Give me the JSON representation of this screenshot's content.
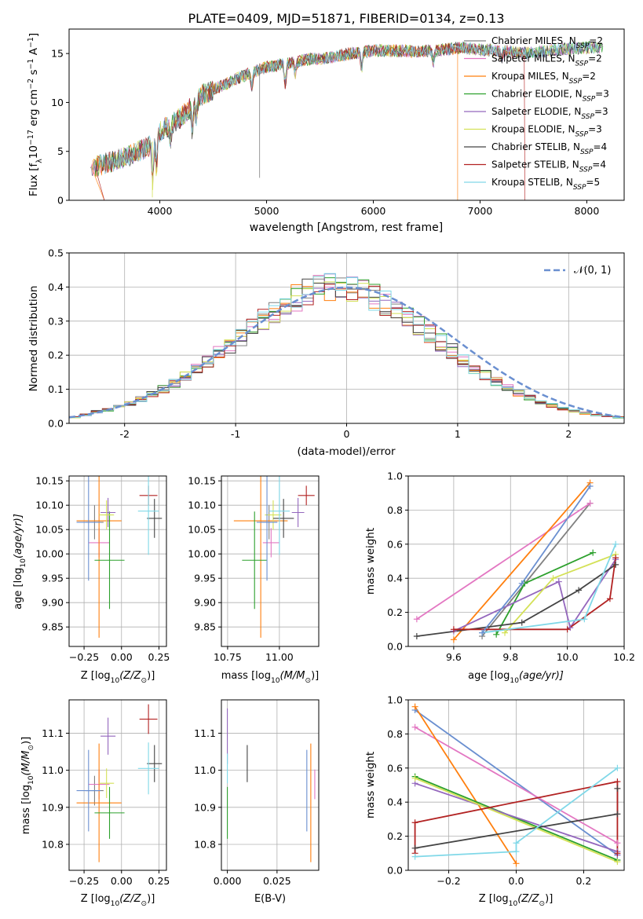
{
  "figure_title": "PLATE=0409, MJD=51871, FIBERID=0134, z=0.13",
  "colors": {
    "Chabrier MILES": "#808080",
    "Salpeter MILES": "#e377c2",
    "Kroupa MILES": "#ff7f0e",
    "Chabrier ELODIE": "#2ca02c",
    "Salpeter ELODIE": "#9467bd",
    "Kroupa ELODIE": "#d4e157",
    "Chabrier STELIB": "#444444",
    "Salpeter STELIB": "#b22222",
    "Kroupa STELIB": "#80d8e8",
    "gaussian": "#6a8fd0"
  },
  "chart_data": [
    {
      "id": "spectrum",
      "type": "line",
      "title": "PLATE=0409, MJD=51871, FIBERID=0134, z=0.13",
      "xlabel": "wavelength [Angstrom, rest frame]",
      "ylabel_main": "Flux [f",
      "ylabel_sub": "λ",
      "ylabel_rest": "10",
      "ylabel_exp1": "−17",
      "ylabel_unit": " erg cm",
      "ylabel_exp2": "−2",
      "ylabel_s": " s",
      "ylabel_exp3": "−1",
      "ylabel_A": " A",
      "ylabel_exp4": "−1",
      "ylabel_end": "]",
      "xlim": [
        3150,
        8350
      ],
      "ylim": [
        0,
        17.5
      ],
      "xticks": [
        4000,
        5000,
        6000,
        7000,
        8000
      ],
      "yticks": [
        0,
        5,
        10,
        15
      ],
      "grid": false,
      "legend_position": "top-right",
      "continuum_x": [
        3350,
        3500,
        3700,
        3900,
        4000,
        4200,
        4400,
        4600,
        4800,
        5000,
        5200,
        5400,
        5600,
        5800,
        6000,
        6200,
        6400,
        6600,
        6800,
        7000,
        7200,
        7400,
        7600,
        7800,
        8000,
        8150
      ],
      "continuum_y": [
        3.3,
        3.8,
        4.5,
        5.5,
        7.0,
        8.5,
        10.8,
        11.8,
        12.8,
        13.6,
        14.0,
        14.4,
        14.6,
        15.0,
        15.3,
        15.3,
        15.2,
        15.3,
        15.6,
        15.4,
        15.3,
        15.0,
        15.2,
        15.5,
        15.6,
        15.7
      ],
      "series": [
        {
          "name": "Chabrier MILES",
          "nssp": "2"
        },
        {
          "name": "Salpeter MILES",
          "nssp": "2"
        },
        {
          "name": "Kroupa MILES",
          "nssp": "2"
        },
        {
          "name": "Chabrier ELODIE",
          "nssp": "3"
        },
        {
          "name": "Salpeter ELODIE",
          "nssp": "3"
        },
        {
          "name": "Kroupa ELODIE",
          "nssp": "3"
        },
        {
          "name": "Chabrier STELIB",
          "nssp": "4"
        },
        {
          "name": "Salpeter STELIB",
          "nssp": "4"
        },
        {
          "name": "Kroupa STELIB",
          "nssp": "5"
        }
      ],
      "legend_ssp_prefix": "N",
      "legend_ssp_sub": "SSP"
    },
    {
      "id": "residuals",
      "type": "bar",
      "xlabel": "(data-model)/error",
      "ylabel": "Normed distribution",
      "xlim": [
        -2.5,
        2.5
      ],
      "ylim": [
        0,
        0.5
      ],
      "xticks": [
        -2,
        -1,
        0,
        1,
        2
      ],
      "yticks": [
        0.0,
        0.1,
        0.2,
        0.3,
        0.4,
        0.5
      ],
      "grid": true,
      "legend_label": "𝒩(0, 1)",
      "legend_position": "top-right",
      "bin_edges_start": -2.5,
      "bin_width": 0.1,
      "histogram_values": [
        0.018,
        0.025,
        0.034,
        0.04,
        0.048,
        0.058,
        0.071,
        0.085,
        0.1,
        0.117,
        0.137,
        0.158,
        0.18,
        0.205,
        0.23,
        0.255,
        0.281,
        0.305,
        0.328,
        0.35,
        0.368,
        0.383,
        0.394,
        0.4,
        0.4,
        0.396,
        0.386,
        0.372,
        0.354,
        0.333,
        0.31,
        0.286,
        0.262,
        0.237,
        0.212,
        0.187,
        0.164,
        0.143,
        0.124,
        0.106,
        0.09,
        0.076,
        0.064,
        0.053,
        0.044,
        0.036,
        0.03,
        0.025,
        0.021,
        0.018
      ]
    },
    {
      "id": "age_vs_Z",
      "type": "scatter",
      "xlabel": "Z [log",
      "xlabel_sub": "10",
      "xlabel_rest": "(Z/Z",
      "xlabel_sun": "⊙",
      "xlabel_end": ")]",
      "ylabel": "age  [log",
      "ylabel_sub": "10",
      "ylabel_rest": "(age/yr)]",
      "xlim": [
        -0.35,
        0.3
      ],
      "ylim": [
        9.81,
        10.16
      ],
      "xticks": [
        -0.25,
        0.0,
        0.25
      ],
      "xticklabels": [
        "−0.25",
        "0.00",
        "0.25"
      ],
      "yticks": [
        9.85,
        9.9,
        9.95,
        10.0,
        10.05,
        10.1,
        10.15
      ],
      "grid": true,
      "points": [
        {
          "series": "Chabrier MILES",
          "x": -0.18,
          "xerr": 0.06,
          "y": 10.065,
          "yerr": 0.035
        },
        {
          "series": "Salpeter MILES",
          "x": -0.15,
          "xerr": 0.07,
          "y": 10.023,
          "yerr": 0.03
        },
        {
          "series": "Kroupa MILES",
          "x": -0.15,
          "xerr": 0.15,
          "y": 10.068,
          "yerr": 0.24
        },
        {
          "series": "Chabrier ELODIE",
          "x": -0.08,
          "xerr": 0.1,
          "y": 9.987,
          "yerr": 0.1
        },
        {
          "series": "Salpeter ELODIE",
          "x": -0.09,
          "xerr": 0.05,
          "y": 10.085,
          "yerr": 0.03
        },
        {
          "series": "Kroupa ELODIE",
          "x": -0.1,
          "xerr": 0.05,
          "y": 10.08,
          "yerr": 0.03
        },
        {
          "series": "Chabrier STELIB",
          "x": 0.22,
          "xerr": 0.05,
          "y": 10.073,
          "yerr": 0.04
        },
        {
          "series": "Salpeter STELIB",
          "x": 0.18,
          "xerr": 0.06,
          "y": 10.12,
          "yerr": 0.02
        },
        {
          "series": "Kroupa STELIB",
          "x": 0.18,
          "xerr": 0.07,
          "y": 10.088,
          "yerr": 0.09
        },
        {
          "series": "gaussian",
          "x": -0.22,
          "xerr": 0.08,
          "y": 10.065,
          "yerr": 0.12
        }
      ]
    },
    {
      "id": "age_vs_mass",
      "type": "scatter",
      "xlabel": "mass [log",
      "xlabel_sub": "10",
      "xlabel_rest": "(M/M",
      "xlabel_sun": "⊙",
      "xlabel_end": ")]",
      "xlim": [
        10.72,
        11.19
      ],
      "ylim": [
        9.81,
        10.16
      ],
      "xticks": [
        10.75,
        11.0
      ],
      "xticklabels": [
        "10.75",
        "11.00"
      ],
      "yticks": [
        9.85,
        9.9,
        9.95,
        10.0,
        10.05,
        10.1,
        10.15
      ],
      "grid": true,
      "points": [
        {
          "series": "Chabrier MILES",
          "x": 10.95,
          "xerr": 0.04,
          "y": 10.065,
          "yerr": 0.035
        },
        {
          "series": "Salpeter MILES",
          "x": 10.96,
          "xerr": 0.04,
          "y": 10.023,
          "yerr": 0.03
        },
        {
          "series": "Kroupa MILES",
          "x": 10.91,
          "xerr": 0.13,
          "y": 10.068,
          "yerr": 0.24
        },
        {
          "series": "Chabrier ELODIE",
          "x": 10.88,
          "xerr": 0.06,
          "y": 9.987,
          "yerr": 0.1
        },
        {
          "series": "Salpeter ELODIE",
          "x": 11.09,
          "xerr": 0.03,
          "y": 10.085,
          "yerr": 0.03
        },
        {
          "series": "Kroupa ELODIE",
          "x": 10.97,
          "xerr": 0.04,
          "y": 10.08,
          "yerr": 0.03
        },
        {
          "series": "Chabrier STELIB",
          "x": 11.02,
          "xerr": 0.05,
          "y": 10.073,
          "yerr": 0.04
        },
        {
          "series": "Salpeter STELIB",
          "x": 11.13,
          "xerr": 0.04,
          "y": 10.12,
          "yerr": 0.02
        },
        {
          "series": "Kroupa STELIB",
          "x": 11.0,
          "xerr": 0.05,
          "y": 10.088,
          "yerr": 0.09
        },
        {
          "series": "gaussian",
          "x": 10.94,
          "xerr": 0.05,
          "y": 10.065,
          "yerr": 0.12
        }
      ]
    },
    {
      "id": "massweight_vs_age",
      "type": "line",
      "xlabel": "age  [log",
      "xlabel_sub": "10",
      "xlabel_rest": "(age/yr)]",
      "ylabel": "mass weight",
      "xlim": [
        9.44,
        10.2
      ],
      "ylim": [
        0,
        1
      ],
      "xticks": [
        9.6,
        9.8,
        10.0,
        10.2
      ],
      "xticklabels": [
        "9.6",
        "9.8",
        "10.0",
        "10.2"
      ],
      "yticks": [
        0.0,
        0.2,
        0.4,
        0.6,
        0.8,
        1.0
      ],
      "grid": true,
      "series": [
        {
          "name": "Chabrier MILES",
          "x": [
            9.7,
            10.08
          ],
          "y": [
            0.06,
            0.84
          ]
        },
        {
          "name": "Salpeter MILES",
          "x": [
            9.47,
            10.08
          ],
          "y": [
            0.16,
            0.84
          ]
        },
        {
          "name": "Kroupa MILES",
          "x": [
            9.6,
            10.08
          ],
          "y": [
            0.04,
            0.96
          ]
        },
        {
          "name": "Chabrier ELODIE",
          "x": [
            9.75,
            9.85,
            10.09
          ],
          "y": [
            0.07,
            0.37,
            0.55
          ]
        },
        {
          "name": "Salpeter ELODIE",
          "x": [
            9.6,
            9.97,
            10.01,
            10.17
          ],
          "y": [
            0.09,
            0.38,
            0.11,
            0.51
          ]
        },
        {
          "name": "Kroupa ELODIE",
          "x": [
            9.78,
            9.95,
            10.17
          ],
          "y": [
            0.08,
            0.4,
            0.54
          ]
        },
        {
          "name": "Chabrier STELIB",
          "x": [
            9.47,
            9.84,
            10.04,
            10.17
          ],
          "y": [
            0.06,
            0.14,
            0.33,
            0.48
          ]
        },
        {
          "name": "Salpeter STELIB",
          "x": [
            9.6,
            10.0,
            10.15,
            10.17
          ],
          "y": [
            0.1,
            0.1,
            0.28,
            0.52
          ]
        },
        {
          "name": "Kroupa STELIB",
          "x": [
            9.7,
            10.06,
            10.17
          ],
          "y": [
            0.08,
            0.16,
            0.6
          ]
        },
        {
          "name": "gaussian",
          "x": [
            9.7,
            9.84,
            10.08
          ],
          "y": [
            0.08,
            0.37,
            0.94
          ]
        }
      ]
    },
    {
      "id": "mass_vs_Z",
      "type": "scatter",
      "xlabel": "Z [log",
      "xlabel_sub": "10",
      "xlabel_rest": "(Z/Z",
      "xlabel_sun": "⊙",
      "xlabel_end": ")]",
      "ylabel": "mass [log",
      "ylabel_sub": "10",
      "ylabel_rest": "(M/M",
      "ylabel_sun": "⊙",
      "ylabel_end": ")]",
      "xlim": [
        -0.35,
        0.3
      ],
      "ylim": [
        10.73,
        11.19
      ],
      "xticks": [
        -0.25,
        0.0,
        0.25
      ],
      "xticklabels": [
        "−0.25",
        "0.00",
        "0.25"
      ],
      "yticks": [
        10.8,
        10.9,
        11.0,
        11.1
      ],
      "grid": true,
      "points": [
        {
          "series": "Chabrier MILES",
          "x": -0.18,
          "xerr": 0.06,
          "y": 10.945,
          "yerr": 0.04
        },
        {
          "series": "Salpeter MILES",
          "x": -0.15,
          "xerr": 0.07,
          "y": 10.962,
          "yerr": 0.04
        },
        {
          "series": "Kroupa MILES",
          "x": -0.15,
          "xerr": 0.15,
          "y": 10.912,
          "yerr": 0.16
        },
        {
          "series": "Chabrier ELODIE",
          "x": -0.08,
          "xerr": 0.1,
          "y": 10.885,
          "yerr": 0.07
        },
        {
          "series": "Salpeter ELODIE",
          "x": -0.09,
          "xerr": 0.05,
          "y": 11.092,
          "yerr": 0.05
        },
        {
          "series": "Kroupa ELODIE",
          "x": -0.1,
          "xerr": 0.05,
          "y": 10.965,
          "yerr": 0.04
        },
        {
          "series": "Chabrier STELIB",
          "x": 0.22,
          "xerr": 0.05,
          "y": 11.018,
          "yerr": 0.05
        },
        {
          "series": "Salpeter STELIB",
          "x": 0.18,
          "xerr": 0.06,
          "y": 11.138,
          "yerr": 0.04
        },
        {
          "series": "Kroupa STELIB",
          "x": 0.18,
          "xerr": 0.07,
          "y": 11.005,
          "yerr": 0.07
        },
        {
          "series": "gaussian",
          "x": -0.22,
          "xerr": 0.08,
          "y": 10.945,
          "yerr": 0.11
        }
      ]
    },
    {
      "id": "mass_vs_ebv",
      "type": "scatter",
      "xlabel": "E(B-V)",
      "xlim": [
        -0.003,
        0.046
      ],
      "ylim": [
        10.73,
        11.19
      ],
      "xticks": [
        0.0,
        0.025
      ],
      "xticklabels": [
        "0.000",
        "0.025"
      ],
      "yticks": [
        10.8,
        10.9,
        11.0,
        11.1
      ],
      "grid": true,
      "points": [
        {
          "series": "Salpeter ELODIE",
          "x": 0.0,
          "xerr": 0,
          "y": 11.092,
          "yerr": 0.075
        },
        {
          "series": "Chabrier ELODIE",
          "x": 0.0,
          "xerr": 0,
          "y": 10.885,
          "yerr": 0.07
        },
        {
          "series": "Kroupa STELIB",
          "x": 0.0,
          "xerr": 0,
          "y": 11.005,
          "yerr": 0.04
        },
        {
          "series": "Chabrier STELIB",
          "x": 0.01,
          "xerr": 0,
          "y": 11.018,
          "yerr": 0.05
        },
        {
          "series": "gaussian",
          "x": 0.04,
          "xerr": 0,
          "y": 10.945,
          "yerr": 0.11
        },
        {
          "series": "Kroupa MILES",
          "x": 0.042,
          "xerr": 0,
          "y": 10.912,
          "yerr": 0.16
        },
        {
          "series": "Salpeter MILES",
          "x": 0.044,
          "xerr": 0,
          "y": 10.962,
          "yerr": 0.04
        }
      ]
    },
    {
      "id": "massweight_vs_Z",
      "type": "line",
      "xlabel": "Z [log",
      "xlabel_sub": "10",
      "xlabel_rest": "(Z/Z",
      "xlabel_sun": "⊙",
      "xlabel_end": ")]",
      "ylabel": "mass weight",
      "xlim": [
        -0.32,
        0.32
      ],
      "ylim": [
        0,
        1
      ],
      "xticks": [
        -0.2,
        0.0,
        0.2
      ],
      "xticklabels": [
        "−0.2",
        "0.0",
        "0.2"
      ],
      "yticks": [
        0.0,
        0.2,
        0.4,
        0.6,
        0.8,
        1.0
      ],
      "grid": true,
      "series": [
        {
          "name": "gaussian",
          "x": [
            -0.3,
            0.3
          ],
          "y": [
            0.94,
            0.09
          ]
        },
        {
          "name": "Salpeter MILES",
          "x": [
            -0.3,
            0.3
          ],
          "y": [
            0.84,
            0.16
          ]
        },
        {
          "name": "Kroupa MILES",
          "x": [
            -0.3,
            0.0
          ],
          "y": [
            0.96,
            0.04
          ]
        },
        {
          "name": "Chabrier ELODIE",
          "x": [
            -0.3,
            0.3
          ],
          "y": [
            0.55,
            0.06
          ]
        },
        {
          "name": "Salpeter ELODIE",
          "x": [
            -0.3,
            0.3,
            0.3
          ],
          "y": [
            0.51,
            0.11,
            0.09
          ]
        },
        {
          "name": "Kroupa ELODIE",
          "x": [
            -0.3,
            0.3
          ],
          "y": [
            0.54,
            0.05
          ]
        },
        {
          "name": "Chabrier STELIB",
          "x": [
            -0.3,
            0.3,
            0.3
          ],
          "y": [
            0.13,
            0.33,
            0.48
          ]
        },
        {
          "name": "Salpeter STELIB",
          "x": [
            -0.3,
            -0.3,
            0.3,
            0.3
          ],
          "y": [
            0.1,
            0.28,
            0.52,
            0.1
          ]
        },
        {
          "name": "Kroupa STELIB",
          "x": [
            -0.3,
            0.0,
            0.0,
            0.3
          ],
          "y": [
            0.08,
            0.11,
            0.16,
            0.6
          ]
        }
      ]
    }
  ]
}
